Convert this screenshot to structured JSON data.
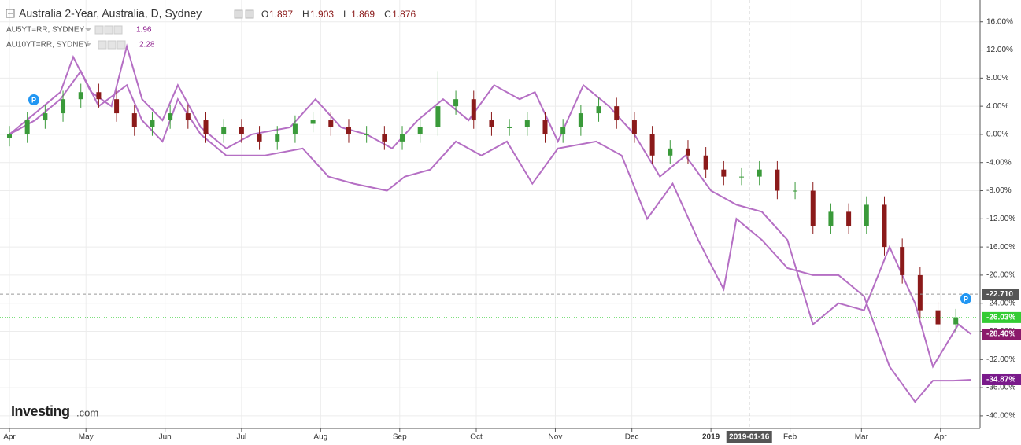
{
  "chart_data": {
    "type": "candlestick",
    "title": "Australia 2-Year, Australia, D, Sydney",
    "ohlc_readout": [
      {
        "label": "O",
        "value": 1.897
      },
      {
        "label": "H",
        "value": 1.903
      },
      {
        "label": "L",
        "value": 1.869
      },
      {
        "label": "C",
        "value": 1.876
      }
    ],
    "x": [
      0,
      7,
      14,
      21,
      28,
      35,
      42,
      49,
      56,
      63,
      70,
      77,
      84,
      91,
      98,
      105,
      112,
      119,
      126,
      133,
      140,
      147,
      154,
      161,
      168,
      175,
      182,
      189,
      196,
      203,
      210,
      217,
      224,
      231,
      238,
      245,
      252,
      259,
      266,
      273,
      280,
      287,
      294,
      301,
      308,
      315,
      322,
      329,
      336,
      343,
      350,
      357,
      364,
      371
    ],
    "open": [
      -0.5,
      0,
      2,
      3,
      5,
      6,
      5,
      3,
      1,
      2,
      3,
      2,
      0,
      1,
      0,
      -1,
      0,
      1.5,
      2,
      1,
      0,
      0,
      -1,
      0,
      1,
      4,
      5,
      2,
      1,
      1,
      2,
      0,
      1,
      3,
      4,
      2,
      0,
      -3,
      -2,
      -3,
      -5,
      -6,
      -6,
      -5,
      -8,
      -8,
      -13,
      -11,
      -13,
      -10,
      -16,
      -20,
      -25,
      -27
    ],
    "high": [
      1.2,
      3.2,
      4.2,
      6.2,
      7.2,
      7.2,
      6.2,
      4.2,
      3.2,
      4.2,
      4.2,
      3.2,
      2.2,
      2.2,
      1.2,
      1.2,
      2.7,
      3.2,
      3.2,
      2.2,
      1.2,
      1.2,
      1.2,
      2.2,
      9,
      6.2,
      6.2,
      3.2,
      2.2,
      3.2,
      3.2,
      2.2,
      4.2,
      5.2,
      5.2,
      3.2,
      1.2,
      -0.8,
      -0.8,
      -1.8,
      -3.8,
      -4.8,
      -3.8,
      -3.8,
      -6.8,
      -6.8,
      -9.8,
      -9.8,
      -8.8,
      -8.8,
      -14.8,
      -18.8,
      -23.8,
      -24.8
    ],
    "low": [
      -1.7,
      -1.2,
      0.8,
      1.8,
      3.8,
      3.8,
      1.8,
      -0.2,
      -0.2,
      0.8,
      0.8,
      -1.2,
      -1.2,
      -1.2,
      -2.2,
      -2.2,
      -1.2,
      0.3,
      -0.2,
      -1.2,
      -1.2,
      -2.2,
      -2.2,
      -1.2,
      -0.2,
      2.8,
      0.8,
      -0.2,
      -0.2,
      -0.2,
      -1.2,
      -1.2,
      -0.2,
      1.8,
      0.8,
      -1.2,
      -4.2,
      -4.2,
      -4.2,
      -6.2,
      -7.2,
      -7.2,
      -7.2,
      -9.2,
      -9.2,
      -14.2,
      -14.2,
      -14.2,
      -14.2,
      -17.2,
      -21.2,
      -26.2,
      -28.2,
      -28.2
    ],
    "close": [
      0,
      2,
      3,
      5,
      6,
      5,
      3,
      1,
      2,
      3,
      2,
      0,
      1,
      0,
      -1,
      0,
      1.5,
      2,
      1,
      0,
      0,
      -1,
      0,
      1,
      4,
      5,
      2,
      1,
      1,
      2,
      0,
      1,
      3,
      4,
      2,
      0,
      -3,
      -2,
      -3,
      -5,
      -6,
      -6,
      -5,
      -8,
      -8,
      -13,
      -11,
      -13,
      -10,
      -16,
      -20,
      -25,
      -27,
      -26
    ],
    "up_color": "#3a9a3a",
    "down_color": "#8b1a1a",
    "last_price": {
      "value": -26.03,
      "label": "-26.03%",
      "color": "#33cc33"
    },
    "crosshair": {
      "x": 290,
      "x_label": "2019-01-16",
      "y": -22.71,
      "y_label": "-22.710"
    },
    "series": [
      {
        "name": "AU5YT=RR, SYDNEY",
        "legend_value": 1.96,
        "color": "#b56fc4",
        "tag_color": "#8b1a6b",
        "x": [
          0,
          10,
          20,
          25,
          32,
          40,
          46,
          52,
          60,
          66,
          75,
          85,
          95,
          110,
          120,
          130,
          140,
          150,
          160,
          170,
          180,
          190,
          200,
          206,
          215,
          225,
          235,
          245,
          255,
          265,
          275,
          285,
          295,
          305,
          315,
          325,
          335,
          345,
          355,
          362,
          372,
          377
        ],
        "values": [
          0,
          3,
          6,
          11,
          6,
          4,
          12.5,
          5,
          2,
          7,
          1,
          -2,
          0,
          1,
          5,
          1,
          0,
          -2,
          2,
          5,
          2,
          7,
          5,
          6,
          -1,
          7,
          4,
          0,
          -6,
          -3,
          -8,
          -10,
          -11,
          -15,
          -27,
          -24,
          -25,
          -16,
          -24,
          -33,
          -27,
          -28.4
        ],
        "last_label": "-28.40%"
      },
      {
        "name": "AU10YT=RR, SYDNEY",
        "legend_value": 2.28,
        "color": "#b56fc4",
        "tag_color": "#7a1a8b",
        "x": [
          0,
          10,
          20,
          28,
          35,
          46,
          52,
          60,
          66,
          75,
          85,
          100,
          115,
          125,
          135,
          148,
          155,
          165,
          175,
          185,
          195,
          205,
          215,
          230,
          240,
          250,
          260,
          270,
          280,
          285,
          295,
          305,
          315,
          325,
          335,
          345,
          355,
          362,
          370,
          377
        ],
        "values": [
          0,
          2,
          5,
          9,
          4,
          7,
          2,
          -1,
          5,
          0,
          -3,
          -3,
          -2,
          -6,
          -7,
          -8,
          -6,
          -5,
          -1,
          -3,
          -1,
          -7,
          -2,
          -1,
          -3,
          -12,
          -7,
          -15,
          -22,
          -12,
          -15,
          -19,
          -20,
          -20,
          -23,
          -33,
          -38,
          -35,
          -35,
          -34.87
        ],
        "last_label": "-34.87%"
      }
    ],
    "xlim": [
      -3.7,
      380.5
    ],
    "xticks": [
      {
        "value": 0,
        "label": "Apr"
      },
      {
        "value": 30,
        "label": "May"
      },
      {
        "value": 61,
        "label": "Jun"
      },
      {
        "value": 91,
        "label": "Jul"
      },
      {
        "value": 122,
        "label": "Aug"
      },
      {
        "value": 153,
        "label": "Sep"
      },
      {
        "value": 183,
        "label": "Oct"
      },
      {
        "value": 214,
        "label": "Nov"
      },
      {
        "value": 244,
        "label": "Dec"
      },
      {
        "value": 275,
        "label": "2019"
      },
      {
        "value": 306,
        "label": "Feb"
      },
      {
        "value": 334,
        "label": "Mar"
      },
      {
        "value": 365,
        "label": "Apr"
      }
    ],
    "ylim": [
      -41.8,
      19.1
    ],
    "yticks": [
      {
        "value": 16,
        "label": "16.00%"
      },
      {
        "value": 12,
        "label": "12.00%"
      },
      {
        "value": 8,
        "label": "8.00%"
      },
      {
        "value": 4,
        "label": "4.00%"
      },
      {
        "value": 0,
        "label": "0.00%"
      },
      {
        "value": -4,
        "label": "-4.00%"
      },
      {
        "value": -8,
        "label": "-8.00%"
      },
      {
        "value": -12,
        "label": "-12.00%"
      },
      {
        "value": -16,
        "label": "-16.00%"
      },
      {
        "value": -20,
        "label": "-20.00%"
      },
      {
        "value": -24,
        "label": "-24.00%"
      },
      {
        "value": -28,
        "label": "-28.00%"
      },
      {
        "value": -32,
        "label": "-32.00%"
      },
      {
        "value": -36,
        "label": "-36.00%"
      },
      {
        "value": -40,
        "label": "-40.00%"
      }
    ],
    "grid": true,
    "logo": [
      "Investing",
      ".com"
    ]
  }
}
